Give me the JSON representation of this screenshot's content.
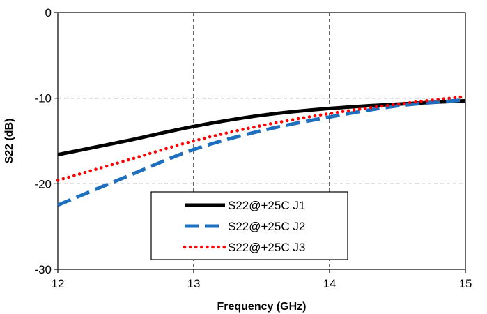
{
  "chart_data": {
    "type": "line",
    "title": "",
    "xlabel": "Frequency (GHz)",
    "ylabel": "S22 (dB)",
    "xlim": [
      12,
      15
    ],
    "ylim": [
      -30,
      0
    ],
    "xticks": [
      "12",
      "13",
      "14",
      "15"
    ],
    "yticks": [
      "0",
      "-10",
      "-20",
      "-30"
    ],
    "grid": true,
    "legend_position": "bottom-center",
    "series": [
      {
        "name": "S22@+25C J1",
        "color": "#000000",
        "style": "solid",
        "x": [
          12,
          12.5,
          13,
          13.5,
          14,
          14.5,
          15
        ],
        "y": [
          -16.6,
          -15,
          -13.3,
          -12,
          -11.2,
          -10.7,
          -10.3
        ]
      },
      {
        "name": "S22@+25C J2",
        "color": "#1f6fbf",
        "style": "dashed",
        "x": [
          12,
          12.5,
          13,
          13.5,
          14,
          14.5,
          15
        ],
        "y": [
          -22.5,
          -19.2,
          -16,
          -13.8,
          -12.2,
          -10.9,
          -10.2
        ]
      },
      {
        "name": "S22@+25C J3",
        "color": "#ff0000",
        "style": "dotted",
        "x": [
          12,
          12.5,
          13,
          13.5,
          14,
          14.5,
          15
        ],
        "y": [
          -19.6,
          -17.3,
          -15,
          -13.2,
          -11.8,
          -10.7,
          -9.8
        ]
      }
    ]
  }
}
